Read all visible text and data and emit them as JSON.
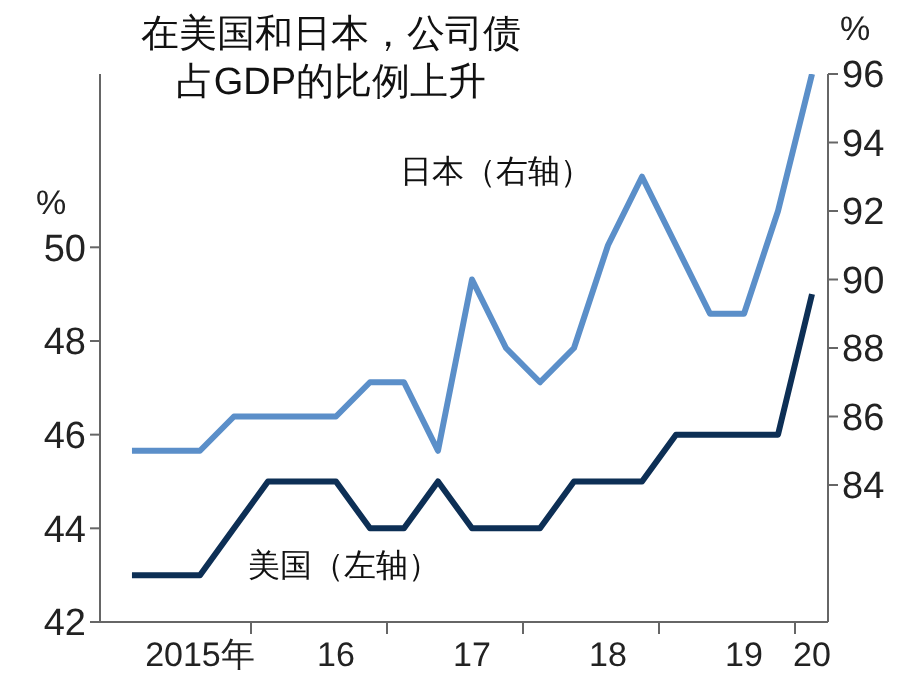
{
  "chart_data": {
    "type": "line",
    "title": "在美国和日本，公司债占GDP的比例上升",
    "ylabel": "%",
    "y2label": "%",
    "categories": [
      null,
      null,
      "2015年",
      null,
      null,
      null,
      "16",
      null,
      null,
      null,
      "17",
      null,
      null,
      null,
      "18",
      null,
      null,
      null,
      "19",
      null,
      "20"
    ],
    "series": [
      {
        "color": "#5b8fc9",
        "axis": "y2",
        "values": [
          85,
          85,
          85,
          86,
          86,
          86,
          86,
          87,
          87,
          85,
          90,
          88,
          87,
          88,
          91,
          93,
          91,
          89,
          89,
          92,
          96
        ]
      },
      {
        "color": "#0d2f55",
        "axis": "y",
        "values": [
          43,
          43,
          43,
          44,
          45,
          45,
          45,
          44,
          44,
          45,
          44,
          44,
          44,
          45,
          45,
          45,
          46,
          46,
          46,
          46,
          49
        ]
      }
    ],
    "ylim": [
      42,
      53.7
    ],
    "yticks": [
      42,
      44,
      46,
      48,
      50
    ],
    "y2lim": [
      80,
      96
    ],
    "y2ticks": [
      84,
      86,
      88,
      90,
      92,
      94,
      96
    ],
    "annotations": [
      "日本（右轴）",
      "美国（左轴）"
    ],
    "grid": false,
    "legend": false,
    "marker": "none",
    "line_style": "solid"
  }
}
